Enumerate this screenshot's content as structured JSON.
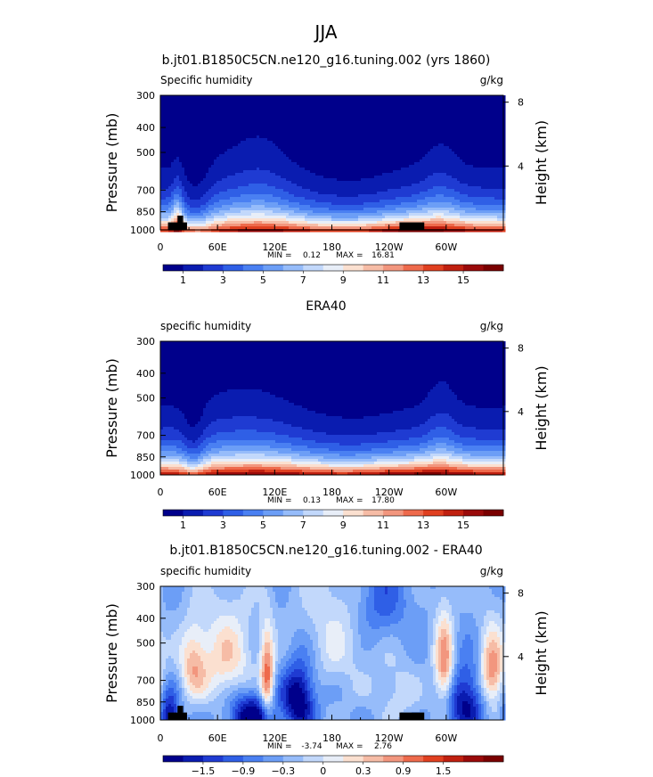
{
  "figure": {
    "title": "JJA"
  },
  "colors": {
    "seq_levels": [
      "#00008b",
      "#0a1cb0",
      "#1f3bd2",
      "#2f5fe6",
      "#4a80f2",
      "#6c9ef6",
      "#96bcfa",
      "#c2d8fb",
      "#e8eef8",
      "#fbe0d0",
      "#f6bca6",
      "#f2967e",
      "#ee6a4c",
      "#e04020",
      "#c02010",
      "#9a0a0a",
      "#7a0000"
    ],
    "div_levels": [
      "#00008b",
      "#0a1cb0",
      "#1f3bd2",
      "#2f5fe6",
      "#4a80f2",
      "#6c9ef6",
      "#96bcfa",
      "#c2d8fb",
      "#e8eef8",
      "#fbe0d0",
      "#f6bca6",
      "#f2967e",
      "#ee6a4c",
      "#e04020",
      "#c02010",
      "#9a0a0a",
      "#7a0000"
    ],
    "mask": "#000000"
  },
  "chart_data": [
    {
      "type": "heatmap",
      "title": "b.jt01.B1850C5CN.ne120_g16.tuning.002 (yrs 1860)",
      "left_label": "Specific humidity",
      "right_label": "g/kg",
      "ylabel": "Pressure (mb)",
      "y2label": "Height (km)",
      "x_ticks": [
        "0",
        "60E",
        "120E",
        "180",
        "120W",
        "60W"
      ],
      "x_tick_values": [
        0,
        60,
        120,
        180,
        240,
        300
      ],
      "xlim": [
        0,
        360
      ],
      "y_ticks": [
        "300",
        "400",
        "500",
        "700",
        "850",
        "1000"
      ],
      "y_tick_values": [
        300,
        400,
        500,
        700,
        850,
        1000
      ],
      "ylim": [
        300,
        1000
      ],
      "y2_ticks": [
        "8",
        "4"
      ],
      "y2_tick_values": [
        8,
        4
      ],
      "min_label": "MIN =",
      "min_value": "0.12",
      "max_label": "MAX =",
      "max_value": "16.81",
      "colorbar_labels": [
        "1",
        "3",
        "5",
        "7",
        "9",
        "11",
        "13",
        "15"
      ],
      "colorbar_levels": [
        0,
        1,
        2,
        3,
        4,
        5,
        6,
        7,
        8,
        9,
        10,
        11,
        12,
        13,
        14,
        15,
        16
      ],
      "palette": "seq",
      "field": "model"
    },
    {
      "type": "heatmap",
      "title": "ERA40",
      "left_label": "specific humidity",
      "right_label": "g/kg",
      "ylabel": "Pressure (mb)",
      "y2label": "Height (km)",
      "x_ticks": [
        "0",
        "60E",
        "120E",
        "180",
        "120W",
        "60W"
      ],
      "x_tick_values": [
        0,
        60,
        120,
        180,
        240,
        300
      ],
      "xlim": [
        0,
        360
      ],
      "y_ticks": [
        "300",
        "400",
        "500",
        "700",
        "850",
        "1000"
      ],
      "y_tick_values": [
        300,
        400,
        500,
        700,
        850,
        1000
      ],
      "ylim": [
        300,
        1000
      ],
      "y2_ticks": [
        "8",
        "4"
      ],
      "y2_tick_values": [
        8,
        4
      ],
      "min_label": "MIN =",
      "min_value": "0.13",
      "max_label": "MAX =",
      "max_value": "17.80",
      "colorbar_labels": [
        "1",
        "3",
        "5",
        "7",
        "9",
        "11",
        "13",
        "15"
      ],
      "colorbar_levels": [
        0,
        1,
        2,
        3,
        4,
        5,
        6,
        7,
        8,
        9,
        10,
        11,
        12,
        13,
        14,
        15,
        16
      ],
      "palette": "seq",
      "field": "obs"
    },
    {
      "type": "heatmap",
      "title": "b.jt01.B1850C5CN.ne120_g16.tuning.002 - ERA40",
      "left_label": "specific humidity",
      "right_label": "g/kg",
      "ylabel": "Pressure (mb)",
      "y2label": "Height (km)",
      "x_ticks": [
        "0",
        "60E",
        "120E",
        "180",
        "120W",
        "60W"
      ],
      "x_tick_values": [
        0,
        60,
        120,
        180,
        240,
        300
      ],
      "xlim": [
        0,
        360
      ],
      "y_ticks": [
        "300",
        "400",
        "500",
        "700",
        "850",
        "1000"
      ],
      "y_tick_values": [
        300,
        400,
        500,
        700,
        850,
        1000
      ],
      "ylim": [
        300,
        1000
      ],
      "y2_ticks": [
        "8",
        "4"
      ],
      "y2_tick_values": [
        8,
        4
      ],
      "min_label": "MIN =",
      "min_value": "-3.74",
      "max_label": "MAX =",
      "max_value": "2.76",
      "colorbar_labels": [
        "−1.5",
        "−0.9",
        "−0.3",
        "0",
        "0.3",
        "0.9",
        "1.5"
      ],
      "colorbar_levels": [
        -2.4,
        -2.1,
        -1.8,
        -1.5,
        -1.2,
        -0.9,
        -0.6,
        -0.3,
        0,
        0.3,
        0.6,
        0.9,
        1.2,
        1.5,
        1.8,
        2.1,
        2.4
      ],
      "palette": "div",
      "field": "diff"
    }
  ]
}
